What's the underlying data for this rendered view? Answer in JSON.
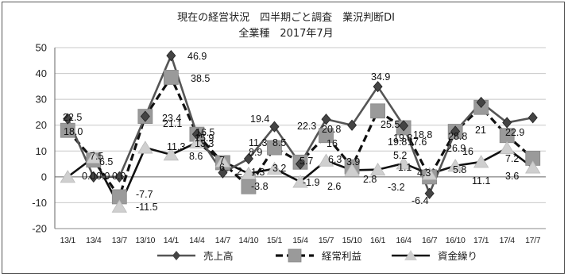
{
  "chart_data": {
    "type": "line",
    "title": "現在の経営状況　四半期ごと調査　業況判断DI",
    "subtitle": "全業種　2017年7月",
    "categories": [
      "13/1",
      "13/4",
      "13/7",
      "13/10",
      "14/1",
      "14/4",
      "14/7",
      "14/10",
      "15/1",
      "15/4",
      "15/7",
      "15/10",
      "16/1",
      "16/4",
      "16/7",
      "16/10",
      "17/1",
      "17/4",
      "17/7"
    ],
    "ylim": [
      -20,
      50
    ],
    "yticks": [
      -20,
      -10,
      0,
      10,
      20,
      30,
      40,
      50
    ],
    "grid": true,
    "legend_position": "bottom",
    "colors": {
      "sales": "#555555",
      "profit": "#9a9a9a",
      "funds_line": "#111111",
      "funds_marker": "#cfcfcf"
    },
    "series": [
      {
        "name": "売上高",
        "key": "sales",
        "values": [
          22.5,
          0.0,
          0.0,
          23.4,
          46.9,
          16.5,
          1.6,
          7.0,
          19.4,
          5.0,
          22.3,
          20.0,
          34.9,
          19.8,
          -6.4,
          17.6,
          28.8,
          21.0,
          22.9
        ]
      },
      {
        "name": "経常利益",
        "key": "profit",
        "values": [
          18.0,
          6.5,
          -7.7,
          23.4,
          38.5,
          16.5,
          5.5,
          -3.8,
          11.3,
          5.7,
          16.0,
          3.9,
          25.5,
          19.0,
          0.0,
          17.6,
          26.9,
          16.0,
          7.2
        ]
      },
      {
        "name": "資金繰り",
        "key": "funds",
        "values": [
          0.0,
          7.5,
          -11.5,
          11.3,
          8.6,
          13.3,
          6.0,
          1.3,
          3.2,
          -1.9,
          6.3,
          2.6,
          2.8,
          5.2,
          1.1,
          4.3,
          5.8,
          11.1,
          3.6
        ]
      }
    ],
    "data_labels": [
      {
        "text": "22.5"
      },
      {
        "text": "18.0"
      },
      {
        "text": "7.5"
      },
      {
        "text": "6.5"
      },
      {
        "text": "0.0"
      },
      {
        "text": "0.0"
      },
      {
        "text": "0.0"
      },
      {
        "text": "-7.7"
      },
      {
        "text": "-11.5"
      },
      {
        "text": "23.4"
      },
      {
        "text": "21.1"
      },
      {
        "text": "11.3"
      },
      {
        "text": "46.9"
      },
      {
        "text": "38.5"
      },
      {
        "text": "8.6"
      },
      {
        "text": "16.5"
      },
      {
        "text": "15.9"
      },
      {
        "text": "13.3"
      },
      {
        "text": "6"
      },
      {
        "text": "7"
      },
      {
        "text": "2"
      },
      {
        "text": "19.4"
      },
      {
        "text": "11.3"
      },
      {
        "text": "8.9"
      },
      {
        "text": "1.3"
      },
      {
        "text": "-3.8"
      },
      {
        "text": "8.5"
      },
      {
        "text": "3.2"
      },
      {
        "text": "22.3"
      },
      {
        "text": "5.7"
      },
      {
        "text": "-1.9"
      },
      {
        "text": "20.8"
      },
      {
        "text": "16"
      },
      {
        "text": "6.3"
      },
      {
        "text": "2.6"
      },
      {
        "text": "3.9"
      },
      {
        "text": "34.9"
      },
      {
        "text": "25.5"
      },
      {
        "text": "2.8"
      },
      {
        "text": "19.8"
      },
      {
        "text": "19.8"
      },
      {
        "text": "5.2"
      },
      {
        "text": "-3.2"
      },
      {
        "text": "1.1"
      },
      {
        "text": "-6.4"
      },
      {
        "text": "17.6"
      },
      {
        "text": "18.8"
      },
      {
        "text": "4.3"
      },
      {
        "text": "26.9"
      },
      {
        "text": "28.8"
      },
      {
        "text": "5.8"
      },
      {
        "text": "21"
      },
      {
        "text": "16"
      },
      {
        "text": "11.1"
      },
      {
        "text": "22.9"
      },
      {
        "text": "7.2"
      },
      {
        "text": "3.6"
      }
    ]
  }
}
